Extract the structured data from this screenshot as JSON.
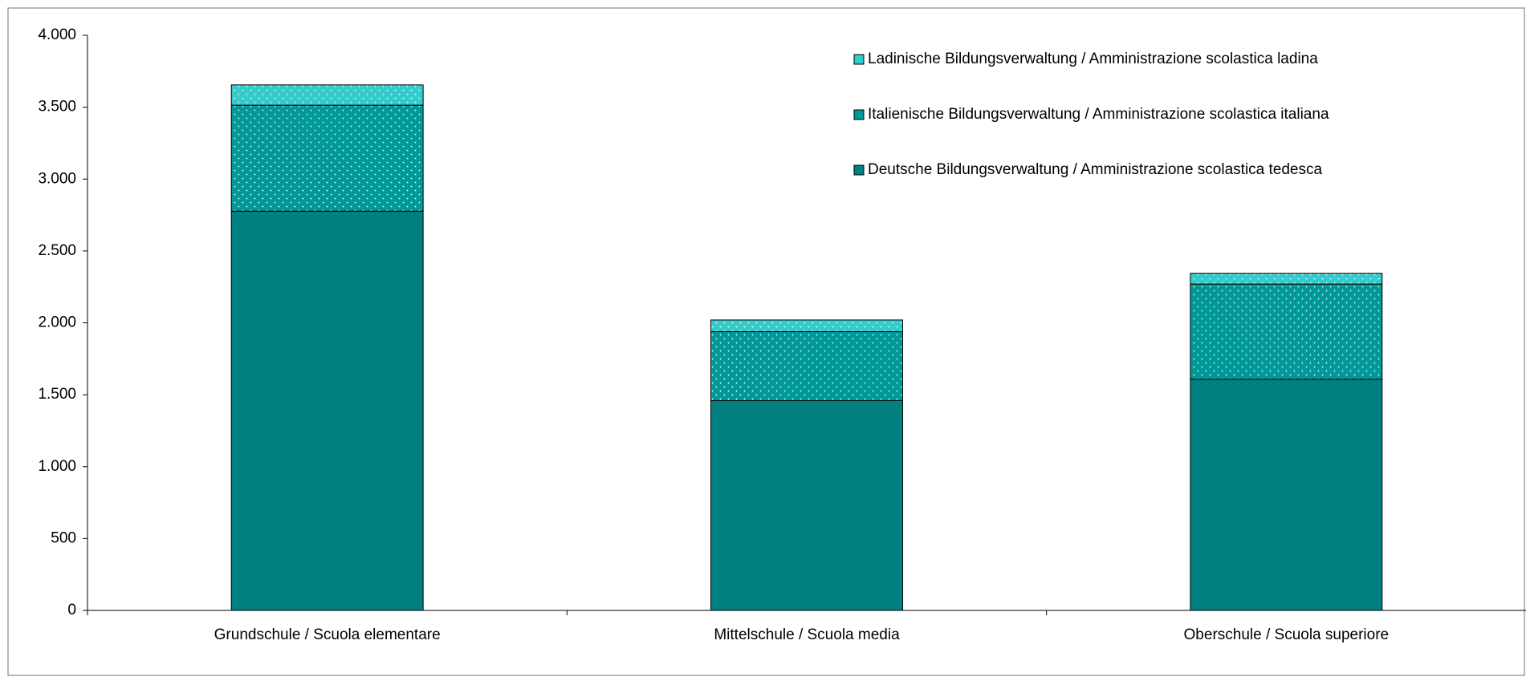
{
  "chart_data": {
    "type": "stacked_bar",
    "categories": [
      "Grundschule / Scuola elementare",
      "Mittelschule / Scuola media",
      "Oberschule / Scuola superiore"
    ],
    "series": [
      {
        "name": "Deutsche Bildungsverwaltung / Amministrazione scolastica tedesca",
        "color": "#008080",
        "pattern": "solid",
        "values": [
          2777,
          1459,
          1608
        ]
      },
      {
        "name": "Italienische Bildungsverwaltung / Amministrazione scolastica italiana",
        "color": "#009999",
        "pattern": "dots",
        "values": [
          737,
          480,
          662
        ]
      },
      {
        "name": "Ladinische Bildungsverwaltung / Amministrazione scolastica ladina",
        "color": "#33cccc",
        "pattern": "dots",
        "values": [
          141,
          81,
          75
        ]
      }
    ],
    "ylim": [
      0,
      4000
    ],
    "yticks": [
      0,
      500,
      {
        "value": 1000,
        "label": "1.000"
      },
      {
        "value": 1500,
        "label": "1.500"
      },
      {
        "value": 2000,
        "label": "2.000"
      },
      {
        "value": 2500,
        "label": "2.500"
      },
      {
        "value": 3000,
        "label": "3.000"
      },
      {
        "value": 3500,
        "label": "3.500"
      },
      {
        "value": 4000,
        "label": "4.000"
      }
    ],
    "grid": false,
    "legend": "top-right"
  }
}
